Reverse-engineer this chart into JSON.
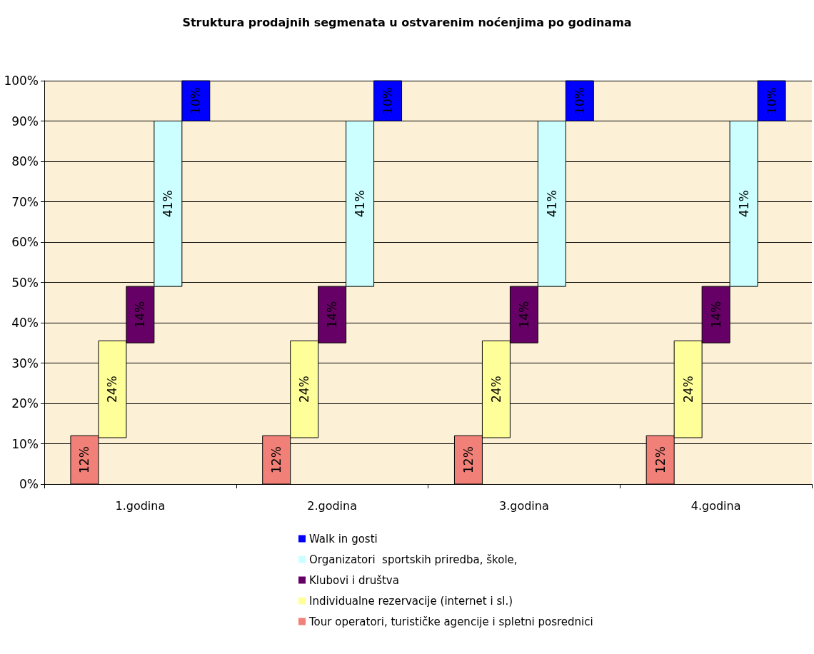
{
  "chart_data": {
    "type": "bar",
    "title": "Struktura prodajnih segmenata u ostvarenim noćenjima po godinama",
    "categories": [
      "1.godina",
      "2.godina",
      "3.godina",
      "4.godina"
    ],
    "series": [
      {
        "name": "Tour operatori, turističke agencije i spletni posrednici",
        "color": "#f08078",
        "values": [
          12,
          12,
          12,
          12
        ],
        "base": [
          0,
          0,
          0,
          0
        ],
        "value_labels": [
          "12%",
          "12%",
          "12%",
          "12%"
        ]
      },
      {
        "name": "Individualne rezervacije (internet i sl.)",
        "color": "#ffff99",
        "values": [
          24,
          24,
          24,
          24
        ],
        "base": [
          11.5,
          11.5,
          11.5,
          11.5
        ],
        "value_labels": [
          "24%",
          "24%",
          "24%",
          "24%"
        ]
      },
      {
        "name": "Klubovi i društva",
        "color": "#660066",
        "values": [
          14,
          14,
          14,
          14
        ],
        "base": [
          35,
          35,
          35,
          35
        ],
        "value_labels": [
          "14%",
          "14%",
          "14%",
          "14%"
        ]
      },
      {
        "name": "Organizatori  sportskih priredba, škole,",
        "color": "#ccffff",
        "values": [
          41,
          41,
          41,
          41
        ],
        "base": [
          49,
          49,
          49,
          49
        ],
        "value_labels": [
          "41%",
          "41%",
          "41%",
          "41%"
        ]
      },
      {
        "name": "Walk in gosti",
        "color": "#0000ff",
        "values": [
          10,
          10,
          10,
          10
        ],
        "base": [
          90,
          90,
          90,
          90
        ],
        "value_labels": [
          "10%",
          "10%",
          "10%",
          "10%"
        ]
      }
    ],
    "ylim": [
      0,
      100
    ],
    "yticks": [
      {
        "value": 0,
        "label": "0%"
      },
      {
        "value": 10,
        "label": "10%"
      },
      {
        "value": 20,
        "label": "20%"
      },
      {
        "value": 30,
        "label": "30%"
      },
      {
        "value": 40,
        "label": "40%"
      },
      {
        "value": 50,
        "label": "50%"
      },
      {
        "value": 60,
        "label": "60%"
      },
      {
        "value": 70,
        "label": "70%"
      },
      {
        "value": 80,
        "label": "80%"
      },
      {
        "value": 90,
        "label": "90%"
      },
      {
        "value": 100,
        "label": "100%"
      }
    ],
    "grid": "y",
    "legend": "bottom"
  }
}
